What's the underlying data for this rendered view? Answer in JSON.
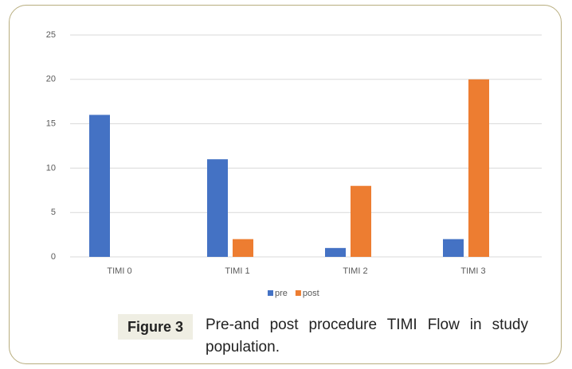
{
  "chart_data": {
    "type": "bar",
    "categories": [
      "TIMI 0",
      "TIMI 1",
      "TIMI 2",
      "TIMI 3"
    ],
    "series": [
      {
        "name": "pre",
        "color": "#4472c4",
        "values": [
          16,
          11,
          1,
          2
        ]
      },
      {
        "name": "post",
        "color": "#ed7d31",
        "values": [
          0,
          2,
          8,
          20
        ]
      }
    ],
    "ylim": [
      0,
      25
    ],
    "yticks": [
      0,
      5,
      10,
      15,
      20,
      25
    ],
    "grid": true,
    "legend": "bottom"
  },
  "figure": {
    "label": "Figure 3",
    "caption": "Pre-and post procedure TIMI Flow in study population."
  }
}
